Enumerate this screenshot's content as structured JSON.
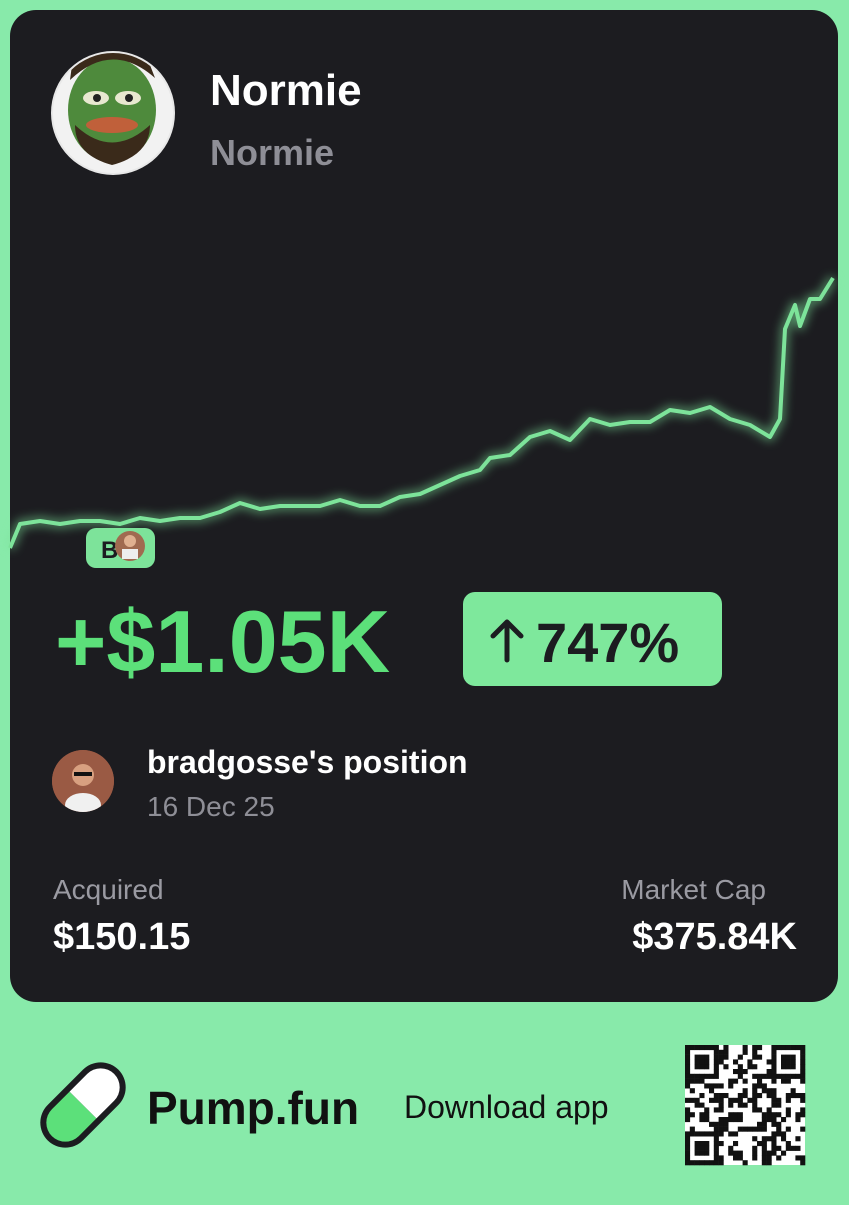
{
  "token": {
    "name": "Normie",
    "symbol": "Normie"
  },
  "chart": {
    "type": "line",
    "x": [
      0,
      10,
      30,
      50,
      70,
      90,
      110,
      130,
      150,
      170,
      190,
      210,
      230,
      250,
      270,
      290,
      310,
      330,
      350,
      370,
      390,
      410,
      430,
      450,
      470,
      480,
      500,
      520,
      540,
      560,
      580,
      600,
      620,
      640,
      660,
      680,
      700,
      720,
      740,
      760,
      770,
      775,
      785,
      790,
      800,
      810,
      823
    ],
    "values": [
      4,
      12,
      13,
      12,
      13,
      13,
      12,
      14,
      13,
      14,
      14,
      16,
      19,
      17,
      18,
      18,
      18,
      20,
      18,
      18,
      21,
      22,
      25,
      28,
      30,
      34,
      35,
      41,
      43,
      40,
      47,
      45,
      46,
      46,
      50,
      49,
      51,
      47,
      45,
      41,
      47,
      77,
      85,
      78,
      87,
      87,
      94
    ],
    "xlim": [
      0,
      823
    ],
    "ylim": [
      0,
      100
    ],
    "color": "#7de39a",
    "buy_marker": "B"
  },
  "pnl": {
    "amount": "+$1.05K",
    "percent": "747%"
  },
  "position": {
    "title": "bradgosse's position",
    "date": "16 Dec 25"
  },
  "stats": {
    "acquired_label": "Acquired",
    "acquired_value": "$150.15",
    "market_cap_label": "Market Cap",
    "market_cap_value": "$375.84K"
  },
  "footer": {
    "brand": "Pump.fun",
    "cta": "Download app"
  }
}
